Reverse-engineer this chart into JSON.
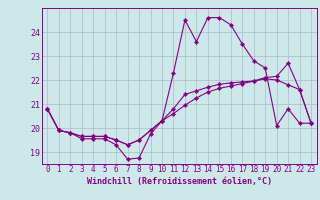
{
  "xlabel": "Windchill (Refroidissement éolien,°C)",
  "background_color": "#cce8e8",
  "line_color": "#880088",
  "grid_color": "#aabbcc",
  "hours": [
    0,
    1,
    2,
    3,
    4,
    5,
    6,
    7,
    8,
    9,
    10,
    11,
    12,
    13,
    14,
    15,
    16,
    17,
    18,
    19,
    20,
    21,
    22,
    23
  ],
  "windchill": [
    20.8,
    19.9,
    19.8,
    19.55,
    19.55,
    19.55,
    19.3,
    18.7,
    18.75,
    19.75,
    20.3,
    22.3,
    24.5,
    23.6,
    24.6,
    24.6,
    24.3,
    23.5,
    22.8,
    22.5,
    20.1,
    20.8,
    20.2,
    20.2
  ],
  "temp": [
    20.8,
    19.9,
    19.8,
    19.65,
    19.65,
    19.65,
    19.5,
    19.3,
    19.5,
    19.9,
    20.3,
    20.6,
    20.95,
    21.25,
    21.5,
    21.65,
    21.75,
    21.85,
    21.95,
    22.05,
    22.0,
    21.8,
    21.6,
    20.2
  ],
  "ressentie": [
    20.8,
    19.9,
    19.8,
    19.65,
    19.65,
    19.65,
    19.5,
    19.3,
    19.5,
    19.9,
    20.3,
    20.8,
    21.4,
    21.55,
    21.7,
    21.82,
    21.88,
    21.92,
    21.96,
    22.1,
    22.15,
    22.7,
    21.6,
    20.2
  ],
  "xlim": [
    -0.5,
    23.5
  ],
  "ylim": [
    18.5,
    25.0
  ],
  "yticks": [
    19,
    20,
    21,
    22,
    23,
    24
  ],
  "xticks": [
    0,
    1,
    2,
    3,
    4,
    5,
    6,
    7,
    8,
    9,
    10,
    11,
    12,
    13,
    14,
    15,
    16,
    17,
    18,
    19,
    20,
    21,
    22,
    23
  ]
}
